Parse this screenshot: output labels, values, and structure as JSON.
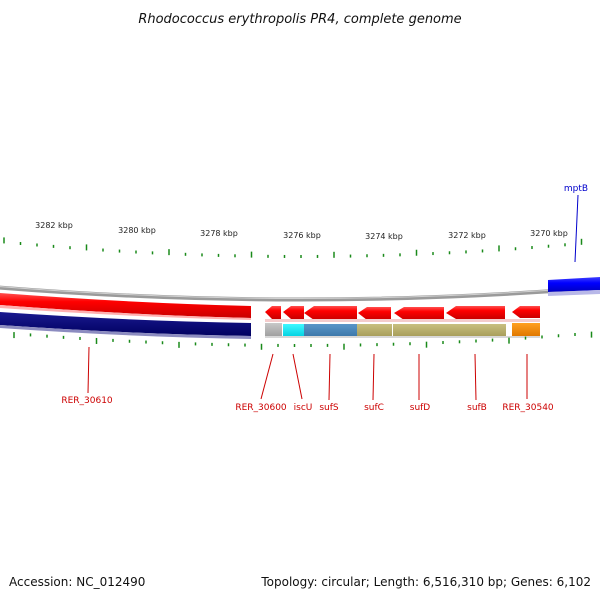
{
  "title": "Rhodococcus erythropolis PR4, complete genome",
  "footer": {
    "accession": "Accession: NC_012490",
    "summary": "Topology: circular; Length: 6,516,310 bp; Genes: 6,102"
  },
  "scale_labels": [
    "3282 kbp",
    "3280 kbp",
    "3278 kbp",
    "3276 kbp",
    "3274 kbp",
    "3272 kbp",
    "3270 kbp"
  ],
  "genes": [
    {
      "label": "RER_30610",
      "strand": "reverse",
      "color": "#e00000",
      "cds_color": "#0a0a80"
    },
    {
      "label": "RER_30600",
      "strand": "reverse",
      "color": "#e00000",
      "cds_color": "#b4b4b4"
    },
    {
      "label": "iscU",
      "strand": "reverse",
      "color": "#e00000",
      "cds_color": "#00e8f0"
    },
    {
      "label": "sufS",
      "strand": "reverse",
      "color": "#e00000",
      "cds_color": "#4a86b8"
    },
    {
      "label": "sufC",
      "strand": "reverse",
      "color": "#e00000",
      "cds_color": "#b8ae6a"
    },
    {
      "label": "sufD",
      "strand": "reverse",
      "color": "#e00000",
      "cds_color": "#b8ae6a"
    },
    {
      "label": "sufB",
      "strand": "reverse",
      "color": "#e00000",
      "cds_color": "#b8ae6a"
    },
    {
      "label": "RER_30540",
      "strand": "reverse",
      "color": "#e00000",
      "cds_color": "#f08c00"
    },
    {
      "label": "mptB",
      "strand": "forward",
      "color": "#0000e6",
      "cds_color": "#0000e6"
    }
  ],
  "colors": {
    "reverse_label": "#cc0000",
    "forward_label": "#0000cc",
    "backbone": "#999999",
    "tick": "#1a8a1a"
  }
}
